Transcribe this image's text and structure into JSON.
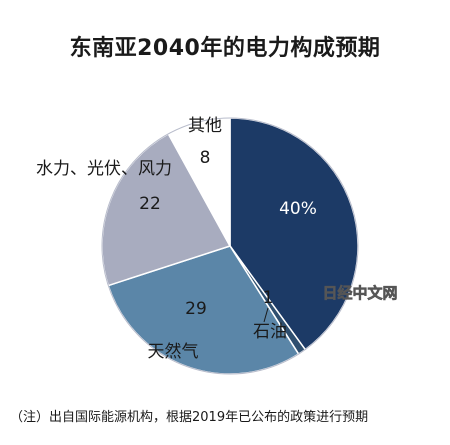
{
  "chart_data": {
    "type": "pie",
    "title": "东南亚2040年的电力构成预期",
    "unit": "%",
    "slices": [
      {
        "name": "",
        "value": 40,
        "label": "40%",
        "color": "#1c3a66"
      },
      {
        "name": "石油",
        "value": 1,
        "label": "1",
        "color": "#2f4f6f"
      },
      {
        "name": "天然气",
        "value": 29,
        "label": "29",
        "color": "#5b86a8"
      },
      {
        "name": "水力、光伏、风力",
        "value": 22,
        "label": "22",
        "color": "#a8acbf"
      },
      {
        "name": "其他",
        "value": 8,
        "label": "8",
        "color": "#ffffff"
      }
    ]
  },
  "watermark": "日经中文网",
  "footnote": "（注）出自国际能源机构，根据2019年已公布的政策进行预期"
}
